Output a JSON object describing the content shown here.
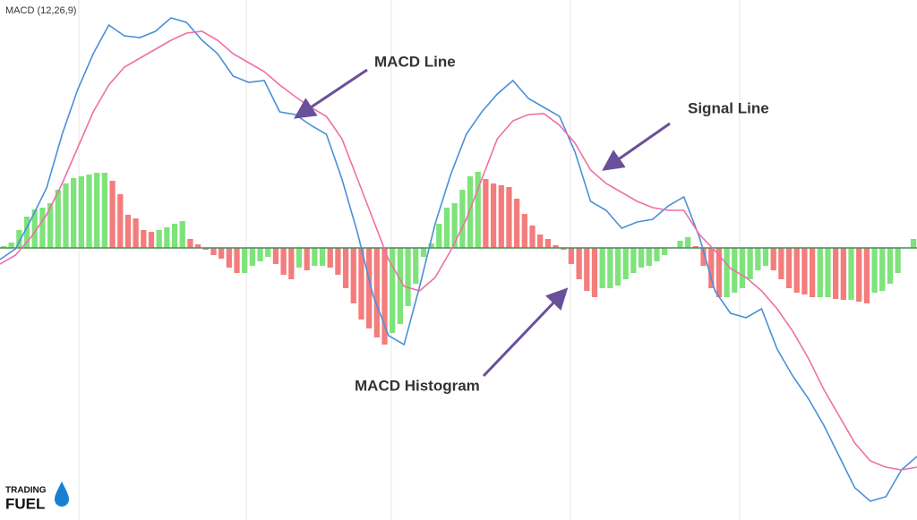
{
  "chart_data": {
    "type": "macd",
    "title": "MACD (12,26,9)",
    "ylim": [
      -304,
      277
    ],
    "up_color": "#7ee37a",
    "down_color": "#f47c7c",
    "histogram": [
      2,
      6,
      20,
      35,
      43,
      45,
      50,
      65,
      72,
      78,
      80,
      82,
      84,
      84,
      75,
      60,
      37,
      33,
      20,
      18,
      20,
      23,
      27,
      30,
      10,
      4,
      -2,
      -8,
      -12,
      -22,
      -28,
      -28,
      -20,
      -15,
      -10,
      -18,
      -30,
      -35,
      -22,
      -25,
      -20,
      -20,
      -22,
      -30,
      -45,
      -62,
      -80,
      -90,
      -100,
      -108,
      -95,
      -85,
      -65,
      -40,
      -10,
      5,
      27,
      45,
      50,
      65,
      80,
      85,
      77,
      72,
      70,
      68,
      55,
      38,
      25,
      15,
      10,
      3,
      -2,
      -18,
      -35,
      -48,
      -55,
      -45,
      -45,
      -42,
      -35,
      -28,
      -22,
      -20,
      -15,
      -8,
      0,
      8,
      12,
      2,
      -20,
      -45,
      -55,
      -55,
      -50,
      -45,
      -35,
      -25,
      -20,
      -25,
      -35,
      -45,
      -50,
      -52,
      -55,
      -55,
      -55,
      -57,
      -58,
      -58,
      -60,
      -62,
      -50,
      -48,
      -40,
      -28,
      0,
      10
    ],
    "series": [
      {
        "name": "MACD Line",
        "color": "#4a90d9",
        "values": [
          -13,
          -1,
          32,
          67,
          127,
          177,
          217,
          249,
          237,
          235,
          242,
          257,
          252,
          232,
          217,
          192,
          185,
          187,
          152,
          149,
          137,
          127,
          77,
          17,
          -53,
          -98,
          -108,
          -43,
          27,
          82,
          127,
          152,
          172,
          187,
          167,
          157,
          147,
          107,
          52,
          42,
          22,
          29,
          32,
          47,
          57,
          12,
          -48,
          -73,
          -78,
          -68,
          -113,
          -143,
          -168,
          -198,
          -233,
          -268,
          -283,
          -278,
          -248,
          -233
        ]
      },
      {
        "name": "Signal Line",
        "color": "#ee6fa6",
        "values": [
          -18,
          -8,
          12,
          37,
          72,
          112,
          152,
          182,
          202,
          212,
          222,
          232,
          240,
          242,
          232,
          217,
          207,
          197,
          182,
          169,
          157,
          147,
          122,
          77,
          32,
          -13,
          -43,
          -48,
          -33,
          -3,
          32,
          77,
          122,
          142,
          149,
          150,
          137,
          117,
          87,
          72,
          62,
          52,
          45,
          42,
          42,
          15,
          -3,
          -23,
          -33,
          -48,
          -68,
          -93,
          -123,
          -158,
          -188,
          -218,
          -238,
          -245,
          -248,
          -245
        ]
      }
    ],
    "annotations": [
      {
        "text": "MACD Line"
      },
      {
        "text": "Signal Line"
      },
      {
        "text": "MACD Histogram"
      }
    ],
    "logo": [
      "TRADING",
      "FUEL"
    ]
  }
}
